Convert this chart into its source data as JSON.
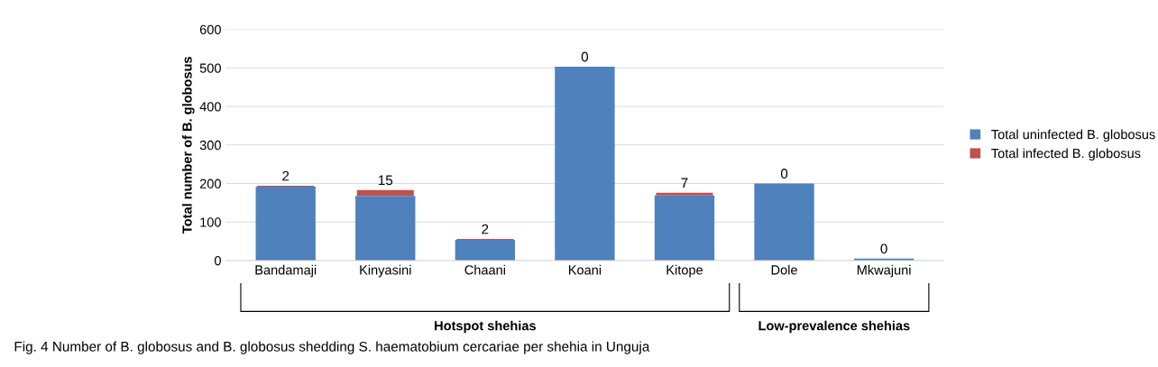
{
  "chart_data": {
    "type": "bar",
    "stacked": true,
    "ylabel": "Total number of B. globosus",
    "categories": [
      "Bandamaji",
      "Kinyasini",
      "Chaani",
      "Koani",
      "Kitope",
      "Dole",
      "Mkwajuni"
    ],
    "series": [
      {
        "name": "Total uninfected B. globosus",
        "color": "#4f81bd",
        "values": [
          192,
          168,
          54,
          503,
          169,
          200,
          5
        ]
      },
      {
        "name": "Total infected B. globosus",
        "color": "#c0504d",
        "values": [
          2,
          15,
          2,
          0,
          7,
          0,
          0
        ],
        "value_labels": [
          "2",
          "15",
          "2",
          "0",
          "7",
          "0",
          "0"
        ]
      }
    ],
    "ylim": [
      0,
      600
    ],
    "yticks": [
      0,
      100,
      200,
      300,
      400,
      500,
      600
    ],
    "grid": "y",
    "legend": "right",
    "annotations": [
      "Hotspot shehias",
      "Low-prevalence shehias",
      "Fig. 4 Number of B. globosus and B. globosus shedding S. haematobium cercariae per shehia in Unguja"
    ]
  }
}
